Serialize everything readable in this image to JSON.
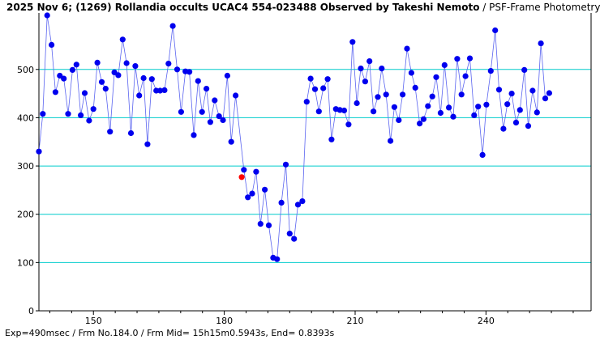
{
  "header": {
    "title_main": "2025 Nov 6; (1269) Rollandia occults UCAC4 554-023488 Observed by Takeshi Nemoto",
    "title_sub": " / PSF-Frame Photometry /"
  },
  "footer": {
    "text": "Exp=490msec / Frm No.184.0 / Frm Mid= 15h15m0.5943s, End= 0.8393s"
  },
  "colors": {
    "points": "#0000ee",
    "line": "#5a64f0",
    "highlight": "#ff0000",
    "grid": "#00cccc",
    "axis": "#000000"
  },
  "chart_data": {
    "type": "scatter",
    "title": "",
    "xlabel": "",
    "ylabel": "",
    "xlim": [
      137.5,
      264.1
    ],
    "ylim": [
      0,
      617
    ],
    "x_ticks": [
      150,
      180,
      210,
      240
    ],
    "y_ticks": [
      0,
      100,
      200,
      300,
      400,
      500
    ],
    "grid": "horizontal",
    "legend": "none",
    "highlight_point": {
      "x": 184.0,
      "y": 277
    },
    "series": [
      {
        "values": [
          [
            137.5,
            330
          ],
          [
            138.4,
            408
          ],
          [
            139.4,
            612
          ],
          [
            140.4,
            551
          ],
          [
            141.3,
            453
          ],
          [
            142.3,
            487
          ],
          [
            143.2,
            481
          ],
          [
            144.2,
            408
          ],
          [
            145.2,
            499
          ],
          [
            146.1,
            510
          ],
          [
            147.1,
            405
          ],
          [
            148.0,
            451
          ],
          [
            149.0,
            394
          ],
          [
            150.0,
            418
          ],
          [
            150.9,
            514
          ],
          [
            151.9,
            474
          ],
          [
            152.8,
            460
          ],
          [
            153.8,
            371
          ],
          [
            154.8,
            494
          ],
          [
            155.7,
            488
          ],
          [
            156.7,
            562
          ],
          [
            157.6,
            513
          ],
          [
            158.6,
            368
          ],
          [
            159.6,
            507
          ],
          [
            160.5,
            446
          ],
          [
            161.5,
            482
          ],
          [
            162.4,
            345
          ],
          [
            163.4,
            480
          ],
          [
            164.4,
            456
          ],
          [
            165.3,
            456
          ],
          [
            166.3,
            457
          ],
          [
            167.2,
            512
          ],
          [
            168.2,
            590
          ],
          [
            169.2,
            500
          ],
          [
            170.1,
            412
          ],
          [
            171.1,
            496
          ],
          [
            172.0,
            495
          ],
          [
            173.0,
            364
          ],
          [
            174.0,
            476
          ],
          [
            174.9,
            412
          ],
          [
            175.9,
            460
          ],
          [
            176.8,
            391
          ],
          [
            177.8,
            436
          ],
          [
            178.8,
            403
          ],
          [
            179.7,
            395
          ],
          [
            180.7,
            487
          ],
          [
            181.6,
            350
          ],
          [
            182.6,
            446
          ],
          [
            184.5,
            292
          ],
          [
            185.4,
            235
          ],
          [
            186.4,
            243
          ],
          [
            187.3,
            288
          ],
          [
            188.3,
            180
          ],
          [
            189.3,
            251
          ],
          [
            190.2,
            177
          ],
          [
            191.2,
            110
          ],
          [
            192.1,
            107
          ],
          [
            193.1,
            224
          ],
          [
            194.1,
            303
          ],
          [
            195.0,
            160
          ],
          [
            196.0,
            149
          ],
          [
            196.9,
            220
          ],
          [
            197.9,
            227
          ],
          [
            198.9,
            433
          ],
          [
            199.8,
            481
          ],
          [
            200.8,
            459
          ],
          [
            201.7,
            413
          ],
          [
            202.7,
            461
          ],
          [
            203.7,
            480
          ],
          [
            204.6,
            355
          ],
          [
            205.6,
            418
          ],
          [
            206.5,
            416
          ],
          [
            207.5,
            415
          ],
          [
            208.5,
            386
          ],
          [
            209.4,
            557
          ],
          [
            210.4,
            430
          ],
          [
            211.3,
            502
          ],
          [
            212.3,
            475
          ],
          [
            213.3,
            517
          ],
          [
            214.2,
            413
          ],
          [
            215.2,
            443
          ],
          [
            216.1,
            502
          ],
          [
            217.1,
            448
          ],
          [
            218.1,
            352
          ],
          [
            219.0,
            422
          ],
          [
            220.0,
            395
          ],
          [
            220.9,
            448
          ],
          [
            221.9,
            543
          ],
          [
            222.9,
            493
          ],
          [
            223.8,
            462
          ],
          [
            224.8,
            388
          ],
          [
            225.7,
            397
          ],
          [
            226.7,
            424
          ],
          [
            227.7,
            444
          ],
          [
            228.6,
            484
          ],
          [
            229.6,
            410
          ],
          [
            230.5,
            509
          ],
          [
            231.5,
            421
          ],
          [
            232.5,
            402
          ],
          [
            233.4,
            522
          ],
          [
            234.4,
            448
          ],
          [
            235.3,
            486
          ],
          [
            236.3,
            523
          ],
          [
            237.3,
            405
          ],
          [
            238.2,
            423
          ],
          [
            239.2,
            323
          ],
          [
            240.1,
            427
          ],
          [
            241.1,
            497
          ],
          [
            242.1,
            581
          ],
          [
            243.0,
            458
          ],
          [
            244.0,
            377
          ],
          [
            244.9,
            428
          ],
          [
            245.9,
            450
          ],
          [
            246.9,
            390
          ],
          [
            247.8,
            416
          ],
          [
            248.8,
            499
          ],
          [
            249.7,
            383
          ],
          [
            250.7,
            456
          ],
          [
            251.7,
            411
          ],
          [
            252.6,
            554
          ],
          [
            253.6,
            440
          ],
          [
            254.5,
            451
          ]
        ]
      }
    ]
  }
}
